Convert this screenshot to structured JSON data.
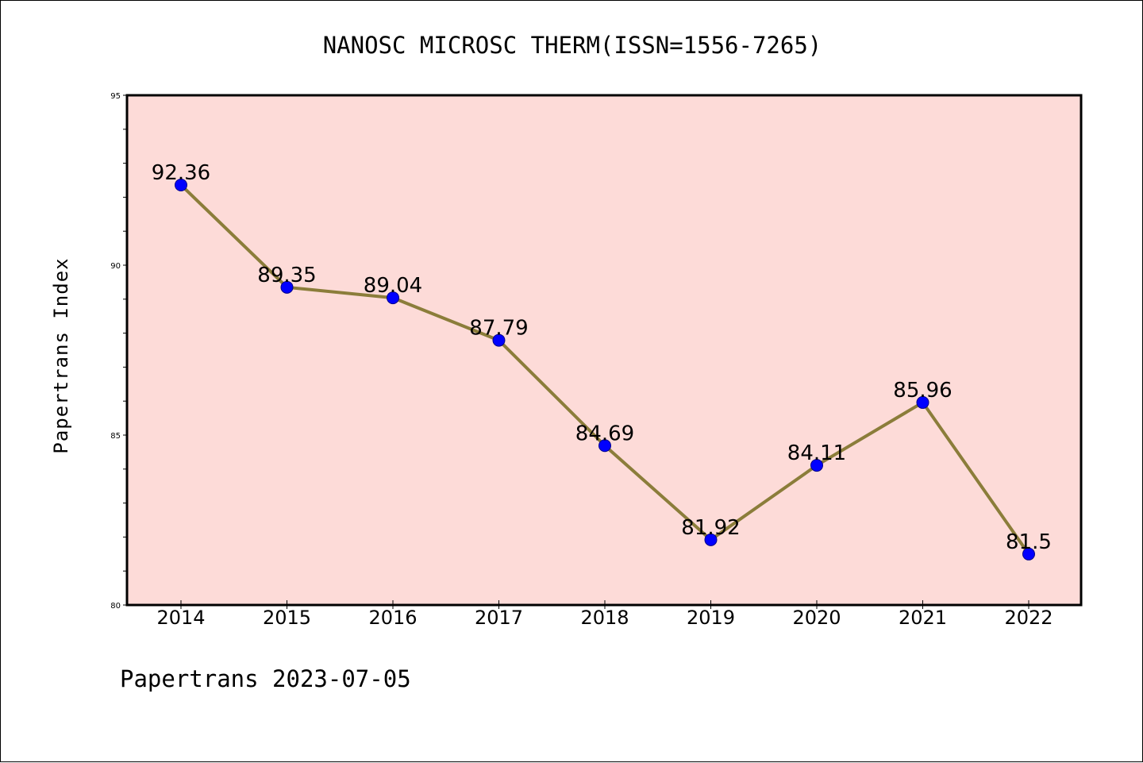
{
  "chart_data": {
    "type": "line",
    "title": "NANOSC MICROSC THERM(ISSN=1556-7265)",
    "ylabel": "Papertrans Index",
    "xlabel": "",
    "categories": [
      "2014",
      "2015",
      "2016",
      "2017",
      "2018",
      "2019",
      "2020",
      "2021",
      "2022"
    ],
    "series": [
      {
        "values": [
          92.36,
          89.35,
          89.04,
          87.79,
          84.69,
          81.92,
          84.11,
          85.96,
          81.5
        ],
        "labels": [
          "92.36",
          "89.35",
          "89.04",
          "87.79",
          "84.69",
          "81.92",
          "84.11",
          "85.96",
          "81.5"
        ]
      }
    ],
    "ylim": [
      80,
      95
    ],
    "yticks": [
      "80",
      "85",
      "90",
      "95"
    ],
    "grid": false,
    "footer": "Papertrans 2023-07-05",
    "colors": {
      "plot_background": "#fddbd8",
      "line": "#8b7d3a",
      "marker": "#0000ff",
      "marker_edge": "#00008b"
    }
  }
}
